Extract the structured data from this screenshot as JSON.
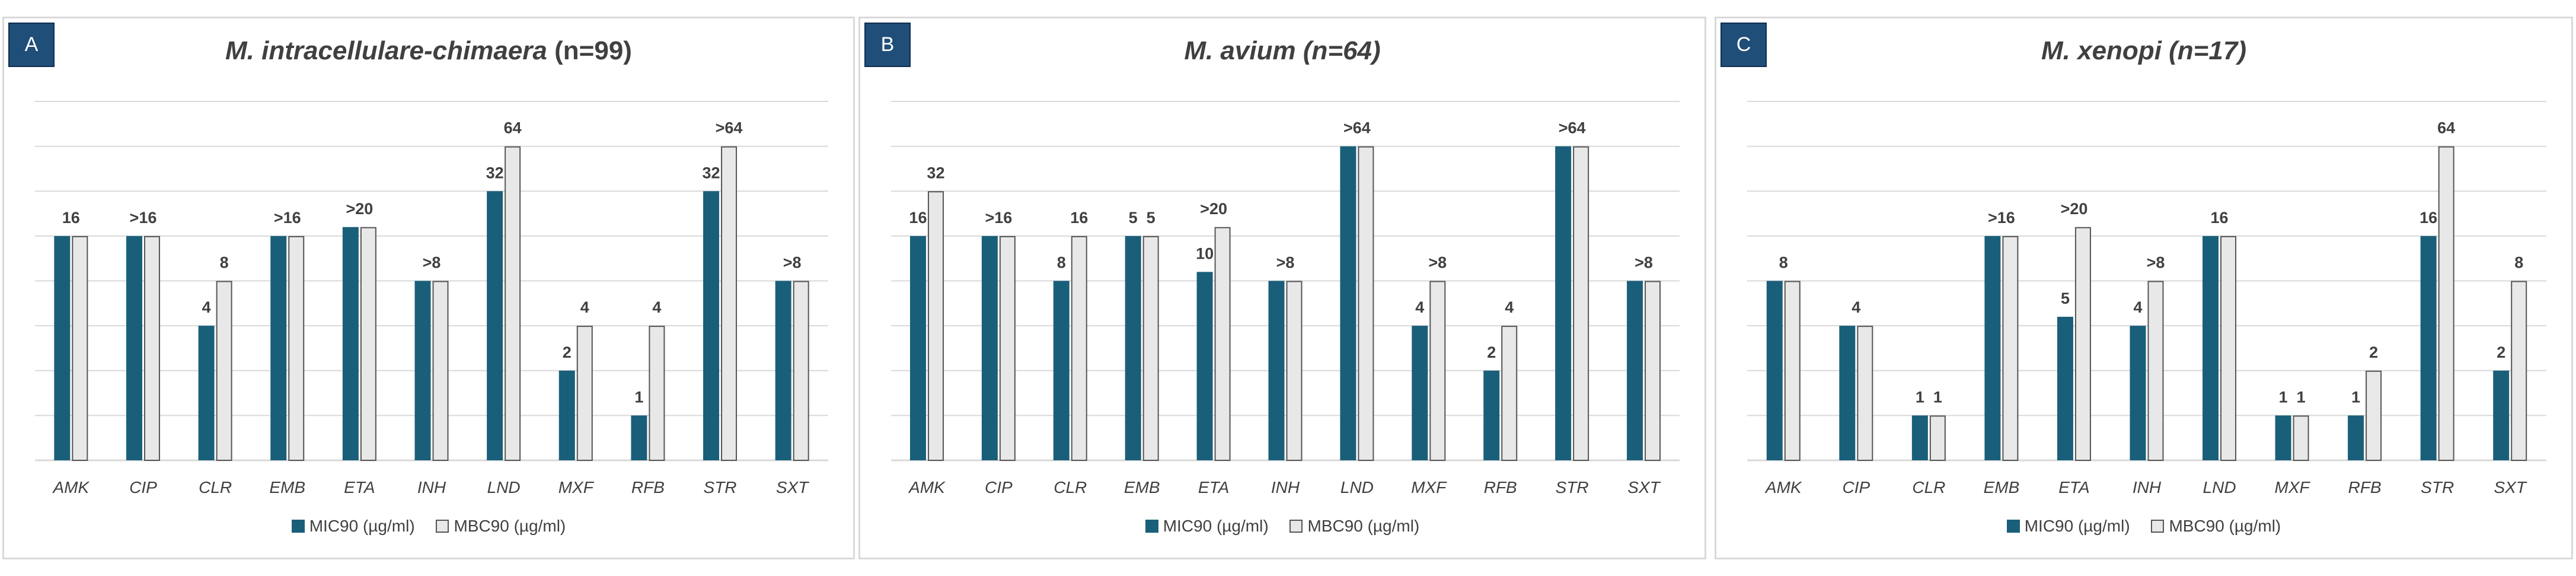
{
  "legend": {
    "mic_label": "MIC90 (µg/ml)",
    "mbc_label": "MBC90 (µg/ml)"
  },
  "colors": {
    "mic": "#1a5f7a",
    "mbc_fill": "#e8e8e8",
    "mbc_stroke": "#555555",
    "grid": "#d9d9d9",
    "text": "#404040",
    "panel_letter_bg": "#1f4e79"
  },
  "chart_data": [
    {
      "panel": "A",
      "type": "bar",
      "title": "M. intracellulare-chimaera",
      "n_label": "(n=99)",
      "n_italic": false,
      "categories": [
        "AMK",
        "CIP",
        "CLR",
        "EMB",
        "ETA",
        "INH",
        "LND",
        "MXF",
        "RFB",
        "STR",
        "SXT"
      ],
      "series": [
        {
          "name": "MIC90 (µg/ml)",
          "values": [
            5,
            5,
            3,
            5,
            5.2,
            4,
            6,
            2,
            1,
            6,
            4
          ]
        },
        {
          "name": "MBC90 (µg/ml)",
          "values": [
            5,
            5,
            4,
            5,
            5.2,
            4,
            7,
            3,
            3,
            7,
            4
          ]
        }
      ],
      "group_labels": [
        "16",
        ">16",
        "",
        ">16",
        ">20",
        ">8",
        "",
        "",
        "",
        "",
        ">8"
      ],
      "mic_labels": [
        "",
        "",
        "4",
        "",
        "",
        "",
        "32",
        "2",
        "1",
        "32",
        ""
      ],
      "mbc_labels": [
        "",
        "",
        "8",
        "",
        "",
        "",
        "64",
        "4",
        "4",
        ">64",
        ""
      ],
      "ylim": [
        0,
        8
      ],
      "gridlines": true,
      "xlabel": "",
      "ylabel": ""
    },
    {
      "panel": "B",
      "type": "bar",
      "title": "M. avium",
      "n_label": "(n=64)",
      "n_italic": true,
      "categories": [
        "AMK",
        "CIP",
        "CLR",
        "EMB",
        "ETA",
        "INH",
        "LND",
        "MXF",
        "RFB",
        "STR",
        "SXT"
      ],
      "series": [
        {
          "name": "MIC90 (µg/ml)",
          "values": [
            5,
            5,
            4,
            5,
            4.2,
            4,
            7,
            3,
            2,
            7,
            4
          ]
        },
        {
          "name": "MBC90 (µg/ml)",
          "values": [
            6,
            5,
            5,
            5,
            5.2,
            4,
            7,
            4,
            3,
            7,
            4
          ]
        }
      ],
      "group_labels": [
        "",
        ">16",
        "",
        "",
        ">20",
        ">8",
        ">64",
        "",
        "",
        ">64",
        ">8"
      ],
      "mic_labels": [
        "16",
        "",
        "8",
        "5",
        "10",
        "",
        "",
        "4",
        "2",
        "",
        ""
      ],
      "mbc_labels": [
        "32",
        "",
        "16",
        "5",
        "",
        "",
        "",
        ">8",
        "4",
        "",
        ""
      ],
      "ylim": [
        0,
        8
      ],
      "gridlines": true,
      "xlabel": "",
      "ylabel": ""
    },
    {
      "panel": "C",
      "type": "bar",
      "title": "M. xenopi",
      "n_label": "(n=17)",
      "n_italic": true,
      "categories": [
        "AMK",
        "CIP",
        "CLR",
        "EMB",
        "ETA",
        "INH",
        "LND",
        "MXF",
        "RFB",
        "STR",
        "SXT"
      ],
      "series": [
        {
          "name": "MIC90 (µg/ml)",
          "values": [
            4,
            3,
            1,
            5,
            3.2,
            3,
            5,
            1,
            1,
            5,
            2
          ]
        },
        {
          "name": "MBC90 (µg/ml)",
          "values": [
            4,
            3,
            1,
            5,
            5.2,
            4,
            5,
            1,
            2,
            7,
            4
          ]
        }
      ],
      "group_labels": [
        "8",
        "4",
        "",
        ">16",
        ">20",
        "",
        "16",
        "",
        "",
        "",
        ""
      ],
      "mic_labels": [
        "",
        "",
        "1",
        "",
        "5",
        "4",
        "",
        "1",
        "1",
        "16",
        "2"
      ],
      "mbc_labels": [
        "",
        "",
        "1",
        "",
        "",
        ">8",
        "",
        "1",
        "2",
        "64",
        "8"
      ],
      "ylim": [
        0,
        8
      ],
      "gridlines": true,
      "xlabel": "",
      "ylabel": ""
    }
  ]
}
